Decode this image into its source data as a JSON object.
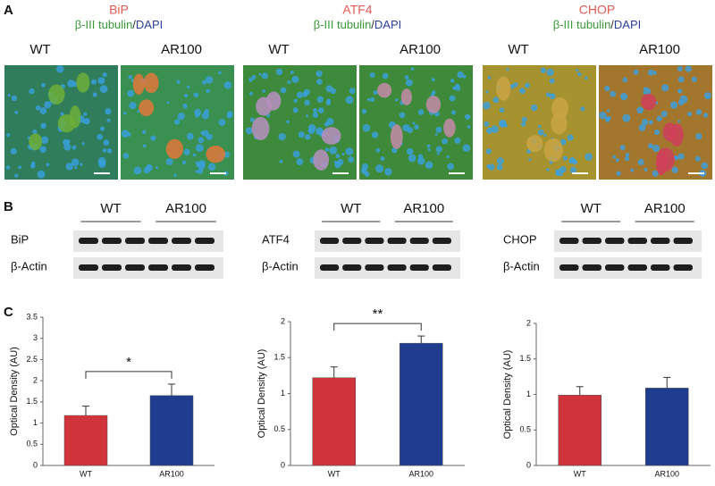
{
  "panel_labels": [
    "A",
    "B",
    "C"
  ],
  "panel_a": [
    {
      "title": "BiP",
      "stain": [
        "β-III tubulin",
        "/",
        "DAPI"
      ],
      "groups": [
        "WT",
        "AR100"
      ]
    },
    {
      "title": "ATF4",
      "stain": [
        "β-III tubulin",
        "/",
        "DAPI"
      ],
      "groups": [
        "WT",
        "AR100"
      ]
    },
    {
      "title": "CHOP",
      "stain": [
        "β-III tubulin",
        "/",
        "DAPI"
      ],
      "groups": [
        "WT",
        "AR100"
      ]
    }
  ],
  "panel_b": [
    {
      "groups": [
        "WT",
        "AR100"
      ],
      "rows": [
        "BiP",
        "β-Actin"
      ]
    },
    {
      "groups": [
        "WT",
        "AR100"
      ],
      "rows": [
        "ATF4",
        "β-Actin"
      ]
    },
    {
      "groups": [
        "WT",
        "AR100"
      ],
      "rows": [
        "CHOP",
        "β-Actin"
      ]
    }
  ],
  "chart_data": [
    {
      "type": "bar",
      "ylabel": "Optical Density (AU)",
      "categories": [
        "WT",
        "AR100"
      ],
      "values": [
        1.18,
        1.65
      ],
      "errors": [
        0.22,
        0.27
      ],
      "colors": [
        "#d0343a",
        "#1f3c8e"
      ],
      "ylim": [
        0,
        3.5
      ],
      "yticks": [
        0,
        0.5,
        1,
        1.5,
        2,
        2.5,
        3,
        3.5
      ],
      "significance": "*"
    },
    {
      "type": "bar",
      "ylabel": "Optical Density (AU)",
      "categories": [
        "WT",
        "AR100"
      ],
      "values": [
        1.22,
        1.7
      ],
      "errors": [
        0.15,
        0.1
      ],
      "colors": [
        "#d0343a",
        "#1f3c8e"
      ],
      "ylim": [
        0,
        2
      ],
      "yticks": [
        0,
        0.5,
        1,
        1.5,
        2
      ],
      "significance": "**"
    },
    {
      "type": "bar",
      "ylabel": "Optical Density (AU)",
      "categories": [
        "WT",
        "AR100"
      ],
      "values": [
        0.99,
        1.09
      ],
      "errors": [
        0.12,
        0.15
      ],
      "colors": [
        "#d0343a",
        "#1f3c8e"
      ],
      "ylim": [
        0,
        2
      ],
      "yticks": [
        0,
        0.5,
        1,
        1.5,
        2
      ]
    }
  ]
}
